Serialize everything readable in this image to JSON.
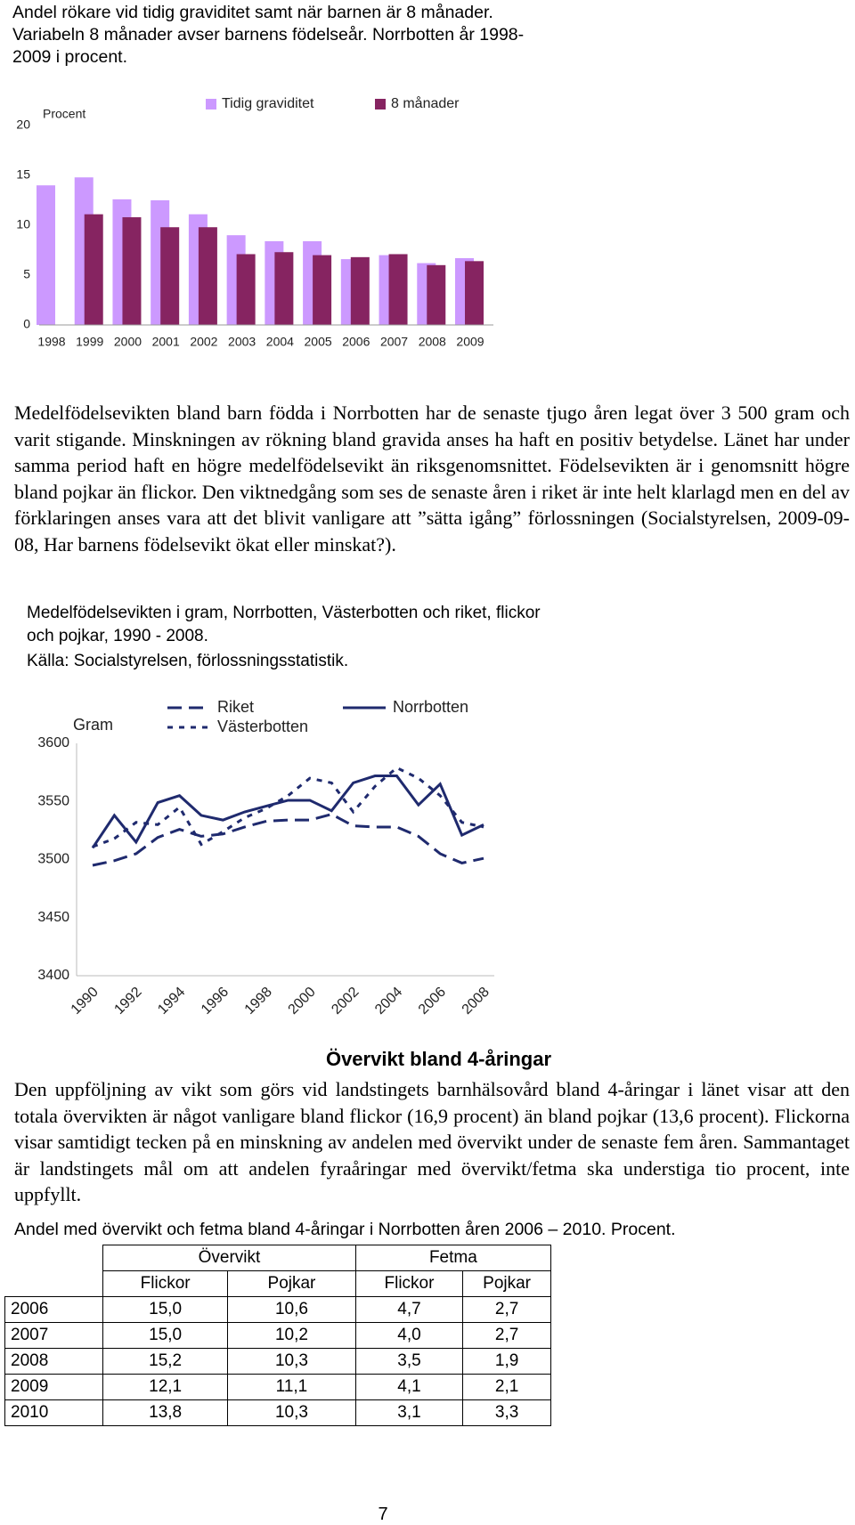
{
  "chart_data": [
    {
      "type": "bar",
      "title": "Andel rökare vid tidig graviditet samt när barnen är 8 månader. Variabeln 8 månader avser barnens födelseår. Norrbotten år 1998-2009 i procent.",
      "y_label": "Procent",
      "categories": [
        "1998",
        "1999",
        "2000",
        "2001",
        "2002",
        "2003",
        "2004",
        "2005",
        "2006",
        "2007",
        "2008",
        "2009"
      ],
      "series": [
        {
          "name": "Tidig graviditet",
          "color": "#cc99ff",
          "values": [
            14.0,
            14.8,
            12.6,
            12.5,
            11.1,
            9.0,
            8.4,
            8.4,
            6.6,
            7.0,
            6.2,
            6.7
          ]
        },
        {
          "name": "8 månader",
          "color": "#862461",
          "values": [
            null,
            11.1,
            10.8,
            9.8,
            9.8,
            7.1,
            7.3,
            7.0,
            6.8,
            7.1,
            6.0,
            6.4
          ]
        }
      ],
      "ylim": [
        0,
        20
      ],
      "yticks": [
        0,
        5,
        10,
        15,
        20
      ],
      "grid": false,
      "legend": "top"
    },
    {
      "type": "line",
      "title": "Medelfödelsevikten i gram, Norrbotten, Västerbotten och riket, flickor och pojkar, 1990 - 2008.",
      "subtitle": "Källa: Socialstyrelsen, förlossningsstatistik.",
      "y_label": "Gram",
      "x": [
        1990,
        1991,
        1992,
        1993,
        1994,
        1995,
        1996,
        1997,
        1998,
        1999,
        2000,
        2001,
        2002,
        2003,
        2004,
        2005,
        2006,
        2007,
        2008
      ],
      "xlim": [
        1990,
        2008
      ],
      "xticks": [
        1990,
        1992,
        1994,
        1996,
        1998,
        2000,
        2002,
        2004,
        2006,
        2008
      ],
      "series": [
        {
          "name": "Riket",
          "color": "#1f2a6e",
          "line_style": "dashed",
          "values": [
            3495,
            3499,
            3505,
            3519,
            3526,
            3520,
            3522,
            3528,
            3533,
            3534,
            3534,
            3539,
            3529,
            3528,
            3528,
            3520,
            3505,
            3497,
            3501
          ]
        },
        {
          "name": "Västerbotten",
          "color": "#1f2a6e",
          "line_style": "dotted",
          "values": [
            3511,
            3518,
            3532,
            3530,
            3545,
            3513,
            3524,
            3536,
            3544,
            3555,
            3570,
            3566,
            3541,
            3563,
            3579,
            3570,
            3555,
            3532,
            3528
          ]
        },
        {
          "name": "Norrbotten",
          "color": "#1f2a6e",
          "line_style": "solid",
          "values": [
            3510,
            3538,
            3515,
            3549,
            3555,
            3538,
            3534,
            3541,
            3546,
            3551,
            3551,
            3542,
            3566,
            3572,
            3572,
            3547,
            3565,
            3521,
            3530
          ]
        }
      ],
      "ylim": [
        3400,
        3600
      ],
      "yticks": [
        3400,
        3450,
        3500,
        3550,
        3600
      ],
      "grid": false,
      "legend": "top"
    }
  ],
  "paragraphs": [
    "Medelfödelsevikten bland barn födda i Norrbotten har de senaste tjugo åren legat över 3 500 gram och varit stigande. Minskningen av rökning bland gravida anses ha haft en positiv betydelse. Länet har under samma period haft en högre medelfödelsevikt än riksgenomsnittet. Födelsevikten är i genomsnitt högre bland pojkar än flickor. Den viktnedgång som ses de senaste åren i riket är inte helt klarlagd men en del av förklaringen anses vara att det blivit vanligare att ”sätta igång” förlossningen (Socialstyrelsen, 2009-09-08, Har barnens födelsevikt ökat eller minskat?).",
    "Den uppföljning av vikt som görs vid landstingets barnhälsovård bland 4-åringar i länet visar att den totala övervikten är något vanligare bland flickor (16,9 procent) än bland pojkar (13,6 procent). Flickorna visar samtidigt tecken på en minskning av andelen med övervikt under de senaste fem åren. Sammantaget är landstingets mål om att andelen fyraåringar med övervikt/fetma ska understiga tio procent, inte uppfyllt."
  ],
  "heading": "Övervikt bland 4-åringar",
  "table": {
    "title": "Andel med övervikt och fetma bland 4-åringar i Norrbotten åren 2006 – 2010. Procent.",
    "groups": [
      "Övervikt",
      "Fetma"
    ],
    "columns": [
      "Flickor",
      "Pojkar",
      "Flickor",
      "Pojkar"
    ],
    "rows": [
      [
        "2006",
        "15,0",
        "10,6",
        "4,7",
        "2,7"
      ],
      [
        "2007",
        "15,0",
        "10,2",
        "4,0",
        "2,7"
      ],
      [
        "2008",
        "15,2",
        "10,3",
        "3,5",
        "1,9"
      ],
      [
        "2009",
        "12,1",
        "11,1",
        "4,1",
        "2,1"
      ],
      [
        "2010",
        "13,8",
        "10,3",
        "3,1",
        "3,3"
      ]
    ]
  },
  "page_number": "7"
}
